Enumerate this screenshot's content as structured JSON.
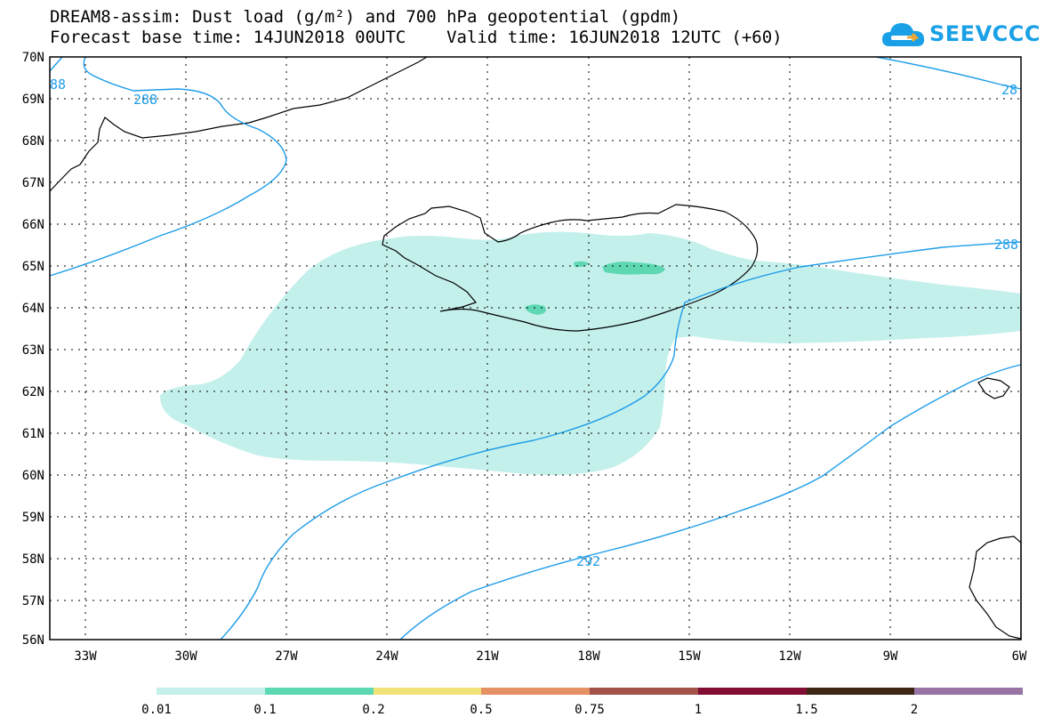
{
  "header": {
    "title_line1": "DREAM8-assim: Dust load (g/m²) and 700 hPa geopotential (gpdm)",
    "title_line2": "Forecast base time: 14JUN2018 00UTC    Valid time: 16JUN2018 12UTC (+60)"
  },
  "logo": {
    "text": "SEEVCCC",
    "icon": "cloud-logo-icon",
    "color": "#1aa0e6"
  },
  "map": {
    "lat_labels": [
      "70N",
      "69N",
      "68N",
      "67N",
      "66N",
      "65N",
      "64N",
      "63N",
      "62N",
      "61N",
      "60N",
      "59N",
      "58N",
      "57N",
      "56N"
    ],
    "lon_labels": [
      "33W",
      "30W",
      "27W",
      "24W",
      "21W",
      "18W",
      "15W",
      "12W",
      "9W",
      "6W"
    ],
    "contour_labels": [
      "288",
      "288",
      "288",
      "292",
      "88",
      "28"
    ],
    "contour_color": "#1e9de8",
    "dust_color_light": "#c4f0ec",
    "dust_color_medium": "#5dd8b2"
  },
  "colorbar": {
    "labels": [
      "0.01",
      "0.1",
      "0.2",
      "0.5",
      "0.75",
      "1",
      "1.5",
      "2"
    ],
    "colors": [
      "#c4f0ec",
      "#5dd8b2",
      "#f2e27a",
      "#e69165",
      "#a35249",
      "#830e33",
      "#3e2614",
      "#9874a4"
    ]
  }
}
